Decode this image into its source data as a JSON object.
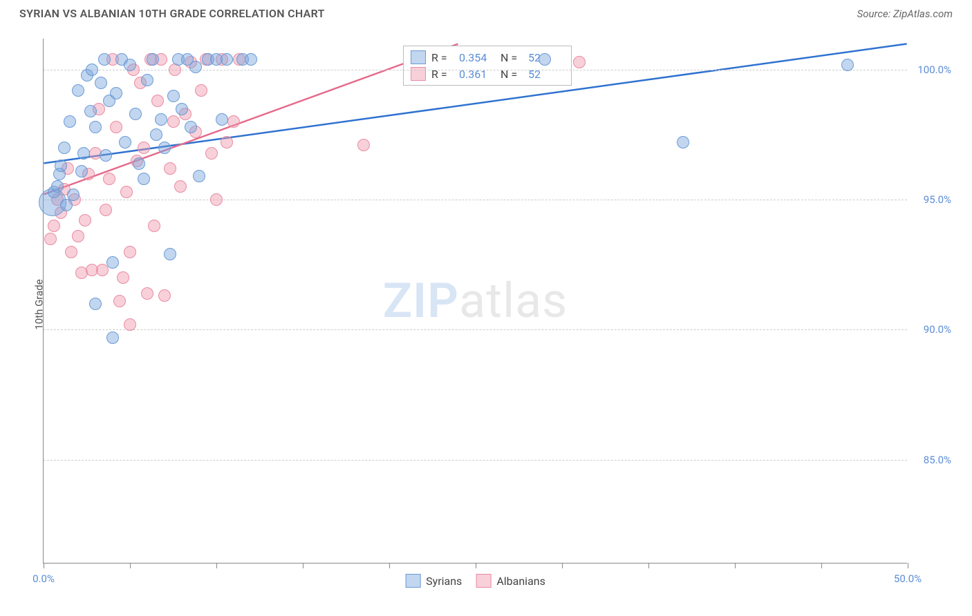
{
  "header": {
    "title": "SYRIAN VS ALBANIAN 10TH GRADE CORRELATION CHART",
    "source_prefix": "Source: ",
    "source_name": "ZipAtlas.com"
  },
  "chart": {
    "type": "scatter",
    "ylabel": "10th Grade",
    "watermark_a": "ZIP",
    "watermark_b": "atlas",
    "xlim": [
      0,
      50
    ],
    "ylim": [
      81,
      101.2
    ],
    "xtick_positions": [
      0,
      5,
      10,
      15,
      20,
      25,
      30,
      35,
      40,
      45,
      50
    ],
    "xtick_labels": {
      "0": "0.0%",
      "50": "50.0%"
    },
    "ytick_positions": [
      85,
      90,
      95,
      100
    ],
    "ytick_labels": {
      "85": "85.0%",
      "90": "90.0%",
      "95": "95.0%",
      "100": "100.0%"
    },
    "grid_color": "#cccccc",
    "tick_label_color": "#5b8dd6",
    "background_color": "#ffffff",
    "series": {
      "syrians": {
        "label": "Syrians",
        "color_fill": "rgba(120,165,220,0.45)",
        "color_stroke": "#6a9ad6",
        "line_color": "#2f72d0",
        "trend": {
          "x1": 0,
          "y1": 96.4,
          "x2": 50,
          "y2": 101.0
        },
        "r_label": "R =",
        "r_value": "0.354",
        "n_label": "N =",
        "n_value": "52",
        "points": [
          [
            0.5,
            94.9,
            20
          ],
          [
            0.6,
            95.3,
            9
          ],
          [
            0.8,
            95.5,
            9
          ],
          [
            0.9,
            96.0,
            9
          ],
          [
            1.0,
            96.3,
            9
          ],
          [
            1.2,
            97.0,
            9
          ],
          [
            1.3,
            94.8,
            9
          ],
          [
            1.5,
            98.0,
            9
          ],
          [
            1.7,
            95.2,
            9
          ],
          [
            2.0,
            99.2,
            9
          ],
          [
            2.2,
            96.1,
            9
          ],
          [
            2.3,
            96.8,
            9
          ],
          [
            2.5,
            99.8,
            9
          ],
          [
            2.7,
            98.4,
            9
          ],
          [
            2.8,
            100.0,
            9
          ],
          [
            3.0,
            97.8,
            9
          ],
          [
            3.3,
            99.5,
            9
          ],
          [
            3.5,
            100.4,
            9
          ],
          [
            3.6,
            96.7,
            9
          ],
          [
            3.8,
            98.8,
            9
          ],
          [
            4.0,
            92.6,
            9
          ],
          [
            4.2,
            99.1,
            9
          ],
          [
            4.5,
            100.4,
            9
          ],
          [
            4.7,
            97.2,
            9
          ],
          [
            5.0,
            100.2,
            9
          ],
          [
            5.3,
            98.3,
            9
          ],
          [
            5.5,
            96.4,
            9
          ],
          [
            5.8,
            95.8,
            9
          ],
          [
            6.0,
            99.6,
            9
          ],
          [
            6.3,
            100.4,
            9
          ],
          [
            6.5,
            97.5,
            9
          ],
          [
            6.8,
            98.1,
            9
          ],
          [
            7.0,
            97.0,
            9
          ],
          [
            7.3,
            92.9,
            9
          ],
          [
            7.5,
            99.0,
            9
          ],
          [
            7.8,
            100.4,
            9
          ],
          [
            8.0,
            98.5,
            9
          ],
          [
            8.3,
            100.4,
            9
          ],
          [
            8.5,
            97.8,
            9
          ],
          [
            8.8,
            100.1,
            9
          ],
          [
            9.0,
            95.9,
            9
          ],
          [
            9.5,
            100.4,
            9
          ],
          [
            10.0,
            100.4,
            9
          ],
          [
            10.3,
            98.1,
            9
          ],
          [
            10.6,
            100.4,
            9
          ],
          [
            4.0,
            89.7,
            9
          ],
          [
            3.0,
            91.0,
            9
          ],
          [
            11.5,
            100.4,
            9
          ],
          [
            12.0,
            100.4,
            9
          ],
          [
            29.0,
            100.4,
            9
          ],
          [
            37.0,
            97.2,
            9
          ],
          [
            46.5,
            100.2,
            9
          ]
        ]
      },
      "albanians": {
        "label": "Albanians",
        "color_fill": "rgba(240,150,170,0.45)",
        "color_stroke": "#e88ba2",
        "line_color": "#e56b8c",
        "trend": {
          "x1": 0,
          "y1": 95.2,
          "x2": 24,
          "y2": 101.0
        },
        "r_label": "R =",
        "r_value": "0.361",
        "n_label": "N =",
        "n_value": "52",
        "points": [
          [
            0.4,
            93.5,
            9
          ],
          [
            0.6,
            94.0,
            9
          ],
          [
            0.8,
            95.0,
            9
          ],
          [
            1.0,
            94.5,
            9
          ],
          [
            1.2,
            95.4,
            9
          ],
          [
            1.4,
            96.2,
            9
          ],
          [
            1.6,
            93.0,
            9
          ],
          [
            1.8,
            95.0,
            9
          ],
          [
            2.0,
            93.6,
            9
          ],
          [
            2.2,
            92.2,
            9
          ],
          [
            2.4,
            94.2,
            9
          ],
          [
            2.6,
            96.0,
            9
          ],
          [
            2.8,
            92.3,
            9
          ],
          [
            3.0,
            96.8,
            9
          ],
          [
            3.2,
            98.5,
            9
          ],
          [
            3.4,
            92.3,
            9
          ],
          [
            3.6,
            94.6,
            9
          ],
          [
            3.8,
            95.8,
            9
          ],
          [
            4.0,
            100.4,
            9
          ],
          [
            4.2,
            97.8,
            9
          ],
          [
            4.4,
            91.1,
            9
          ],
          [
            4.6,
            92.0,
            9
          ],
          [
            4.8,
            95.3,
            9
          ],
          [
            5.0,
            93.0,
            9
          ],
          [
            5.2,
            100.0,
            9
          ],
          [
            5.4,
            96.5,
            9
          ],
          [
            5.6,
            99.5,
            9
          ],
          [
            5.8,
            97.0,
            9
          ],
          [
            6.0,
            91.4,
            9
          ],
          [
            6.2,
            100.4,
            9
          ],
          [
            6.4,
            94.0,
            9
          ],
          [
            6.6,
            98.8,
            9
          ],
          [
            6.8,
            100.4,
            9
          ],
          [
            7.0,
            91.3,
            9
          ],
          [
            7.3,
            96.2,
            9
          ],
          [
            7.6,
            100.0,
            9
          ],
          [
            7.9,
            95.5,
            9
          ],
          [
            8.2,
            98.3,
            9
          ],
          [
            8.5,
            100.3,
            9
          ],
          [
            8.8,
            97.6,
            9
          ],
          [
            9.1,
            99.2,
            9
          ],
          [
            9.4,
            100.4,
            9
          ],
          [
            9.7,
            96.8,
            9
          ],
          [
            10.0,
            95.0,
            9
          ],
          [
            10.3,
            100.4,
            9
          ],
          [
            10.6,
            97.2,
            9
          ],
          [
            5.0,
            90.2,
            9
          ],
          [
            7.5,
            98.0,
            9
          ],
          [
            11.0,
            98.0,
            9
          ],
          [
            11.3,
            100.4,
            9
          ],
          [
            18.5,
            97.1,
            9
          ],
          [
            31.0,
            100.3,
            9
          ]
        ]
      }
    }
  }
}
